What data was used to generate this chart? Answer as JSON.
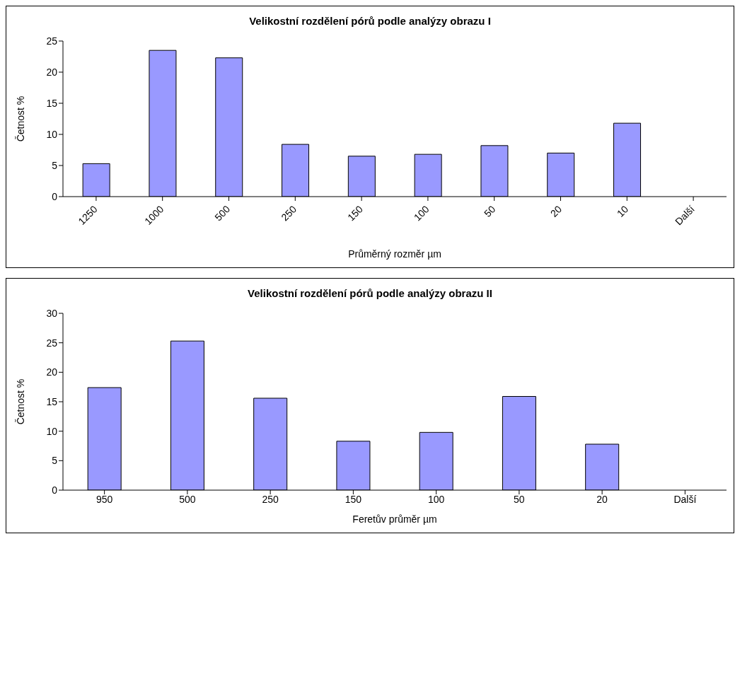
{
  "chart_data": [
    {
      "type": "bar",
      "title": "Velikostní rozdělení pórů podle analýzy obrazu I",
      "xlabel": "Průměrný rozměr µm",
      "ylabel": "Četnost %",
      "categories": [
        "1250",
        "1000",
        "500",
        "250",
        "150",
        "100",
        "50",
        "20",
        "10",
        "Další"
      ],
      "values": [
        5.3,
        23.5,
        22.3,
        8.4,
        6.5,
        6.8,
        8.2,
        7.0,
        11.8,
        0
      ],
      "color": "#9999ff",
      "ylim": [
        0,
        25
      ],
      "yticks": [
        0,
        5,
        10,
        15,
        20,
        25
      ],
      "grid": false,
      "legend": false
    },
    {
      "type": "bar",
      "title": "Velikostní rozdělení pórů podle analýzy obrazu II",
      "xlabel": "Feretův průměr µm",
      "ylabel": "Četnost %",
      "categories": [
        "950",
        "500",
        "250",
        "150",
        "100",
        "50",
        "20",
        "Další"
      ],
      "values": [
        17.4,
        25.3,
        15.6,
        8.3,
        9.8,
        15.9,
        7.8,
        0
      ],
      "color": "#9999ff",
      "ylim": [
        0,
        30
      ],
      "yticks": [
        0,
        5,
        10,
        15,
        20,
        25,
        30
      ],
      "grid": false,
      "legend": false
    }
  ]
}
